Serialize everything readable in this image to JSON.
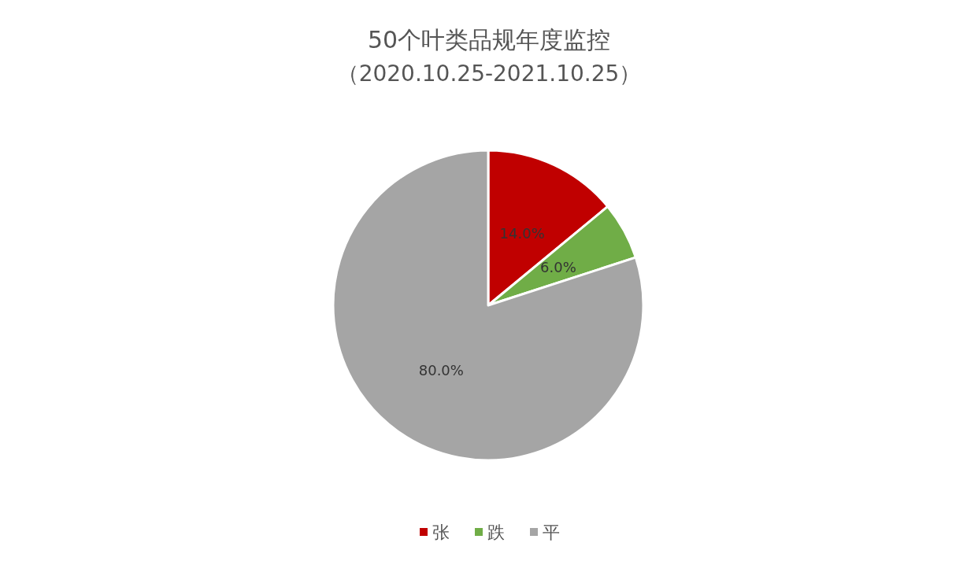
{
  "chart_data": {
    "type": "pie",
    "title": "50个叶类品规年度监控",
    "subtitle": "（2020.10.25-2021.10.25）",
    "categories": [
      "张",
      "跌",
      "平"
    ],
    "values": [
      14,
      6,
      80
    ],
    "colors": [
      "#c00000",
      "#70ad47",
      "#a5a5a5"
    ],
    "value_labels": [
      "14.0%",
      "6.0%",
      "80.0%"
    ],
    "legend": "bottom"
  }
}
